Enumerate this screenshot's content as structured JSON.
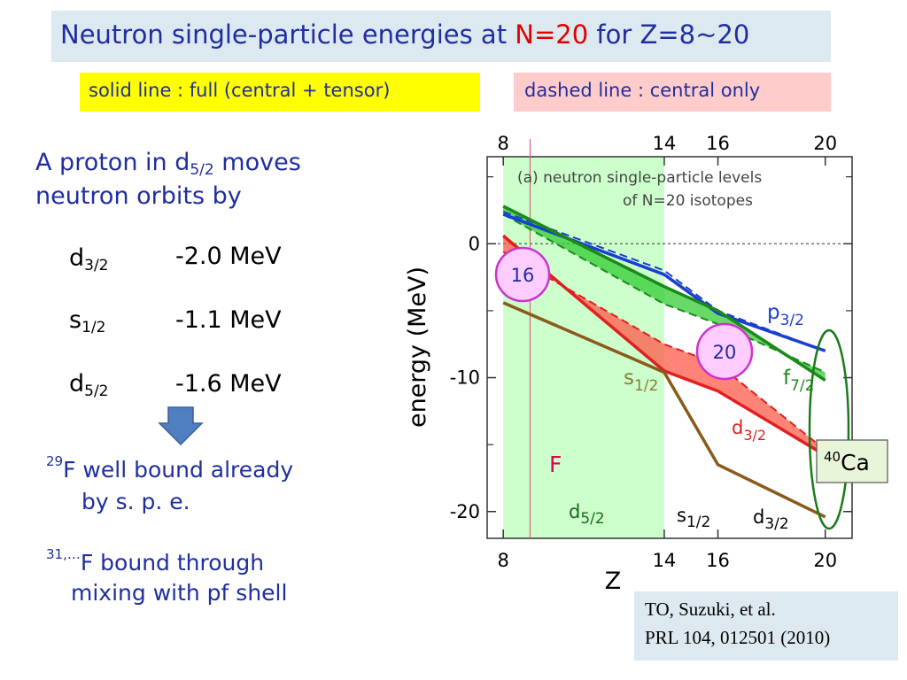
{
  "title": {
    "prefix": "Neutron single-particle energies at ",
    "highlight": "N=20",
    "suffix": " for Z=8~20"
  },
  "legend": {
    "solid": "solid line : full (central + tensor)",
    "dashed": "dashed line : central only"
  },
  "intro": {
    "line1_a": "A proton in d",
    "line1_sub": "5/2",
    "line1_b": " moves",
    "line2": "neutron orbits by"
  },
  "shifts": [
    {
      "orbit": "d",
      "sub": "3/2",
      "value": "-2.0 MeV"
    },
    {
      "orbit": "s",
      "sub": "1/2",
      "value": "-1.1  MeV"
    },
    {
      "orbit": "d",
      "sub": "5/2",
      "value": "-1.6 MeV"
    }
  ],
  "notes": {
    "n1_sup": "29",
    "n1_a": "F well bound already",
    "n1_b": "by s. p. e.",
    "n2_sup": "31,…",
    "n2_a": "F bound through",
    "n2_b": "mixing with pf shell"
  },
  "reference": {
    "line1": "TO, Suzuki, et al.",
    "line2": "PRL 104, 012501 (2010)"
  },
  "colors": {
    "title": "#1f2ea0",
    "highlight": "#e00000",
    "p32": "#1a3fd0",
    "f72": "#1a8a1a",
    "d32": "#e02020",
    "s12": "#8b5a1a",
    "band": "#ccffcc"
  },
  "chart_data": {
    "type": "line",
    "inset_title": "(a) neutron single-particle levels",
    "inset_subtitle": "of N=20 isotopes",
    "xlabel": "Z",
    "ylabel": "energy (MeV)",
    "xlim": [
      7.4,
      21
    ],
    "ylim": [
      -22,
      6.5
    ],
    "x_ticks": [
      "8",
      "14",
      "16",
      "20"
    ],
    "x_ticks_values": [
      8,
      14,
      16,
      20
    ],
    "top_ticks": [
      "8",
      "14",
      "16",
      "20"
    ],
    "y_ticks": [
      "0",
      "-10",
      "-20"
    ],
    "y_ticks_values": [
      0,
      -10,
      -20
    ],
    "band_range": [
      8,
      14
    ],
    "fluorine_z": 9,
    "fluorine_label": "F",
    "series": [
      {
        "key": "p32",
        "orbit": "p",
        "sub": "3/2",
        "x": [
          8,
          14,
          16,
          20
        ],
        "y": [
          2.2,
          -2.3,
          -5.2,
          -8.0
        ],
        "central_y": [
          2.4,
          -2.0,
          -5.0,
          -8.0
        ]
      },
      {
        "key": "f72",
        "orbit": "f",
        "sub": "7/2",
        "x": [
          8,
          14,
          16,
          20
        ],
        "y": [
          2.8,
          -3.2,
          -5.0,
          -10.2
        ],
        "central_y": [
          2.2,
          -4.5,
          -6.0,
          -9.6
        ]
      },
      {
        "key": "d32",
        "orbit": "d",
        "sub": "3/2",
        "x": [
          8,
          14,
          16,
          20
        ],
        "y": [
          0.6,
          -9.5,
          -11.0,
          -15.8
        ],
        "central_y": [
          -0.6,
          -7.5,
          -9.0,
          -15.4
        ]
      },
      {
        "key": "s12",
        "orbit": "s",
        "sub": "1/2",
        "x": [
          8,
          14,
          16,
          20
        ],
        "y": [
          -4.4,
          -9.6,
          -16.5,
          -20.4
        ]
      }
    ],
    "bottom_orbits": [
      {
        "orbit": "d",
        "sub": "5/2"
      },
      {
        "orbit": "s",
        "sub": "1/2"
      },
      {
        "orbit": "d",
        "sub": "3/2"
      }
    ],
    "circles": [
      "16",
      "20"
    ],
    "ca_label_sup": "40",
    "ca_label": "Ca"
  }
}
